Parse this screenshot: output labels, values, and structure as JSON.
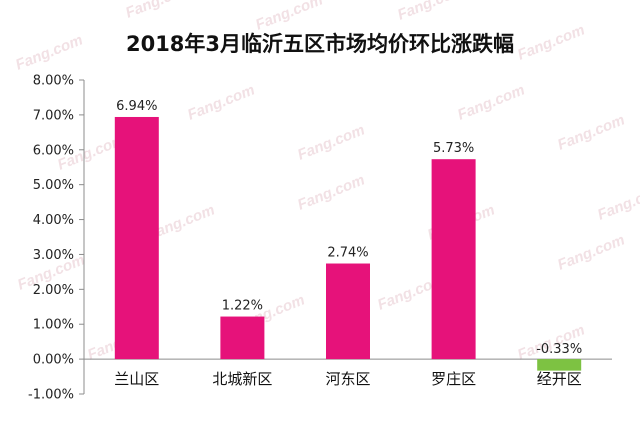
{
  "chart_data": {
    "type": "bar",
    "title": "2018年3月临沂五区市场均价环比涨跌幅",
    "categories": [
      "兰山区",
      "北城新区",
      "河东区",
      "罗庄区",
      "经开区"
    ],
    "values": [
      6.94,
      1.22,
      2.74,
      5.73,
      -0.33
    ],
    "data_labels": [
      "6.94%",
      "1.22%",
      "2.74%",
      "5.73%",
      "-0.33%"
    ],
    "ylim": [
      -1.0,
      8.0
    ],
    "yticks": [
      -1,
      0,
      1,
      2,
      3,
      4,
      5,
      6,
      7,
      8
    ],
    "ytick_labels": [
      "-1.00%",
      "0.00%",
      "1.00%",
      "2.00%",
      "3.00%",
      "4.00%",
      "5.00%",
      "6.00%",
      "7.00%",
      "8.00%"
    ],
    "grid": false,
    "colors": {
      "positive": "#e6127a",
      "negative": "#7dc242"
    }
  },
  "watermark": "Fang.com"
}
